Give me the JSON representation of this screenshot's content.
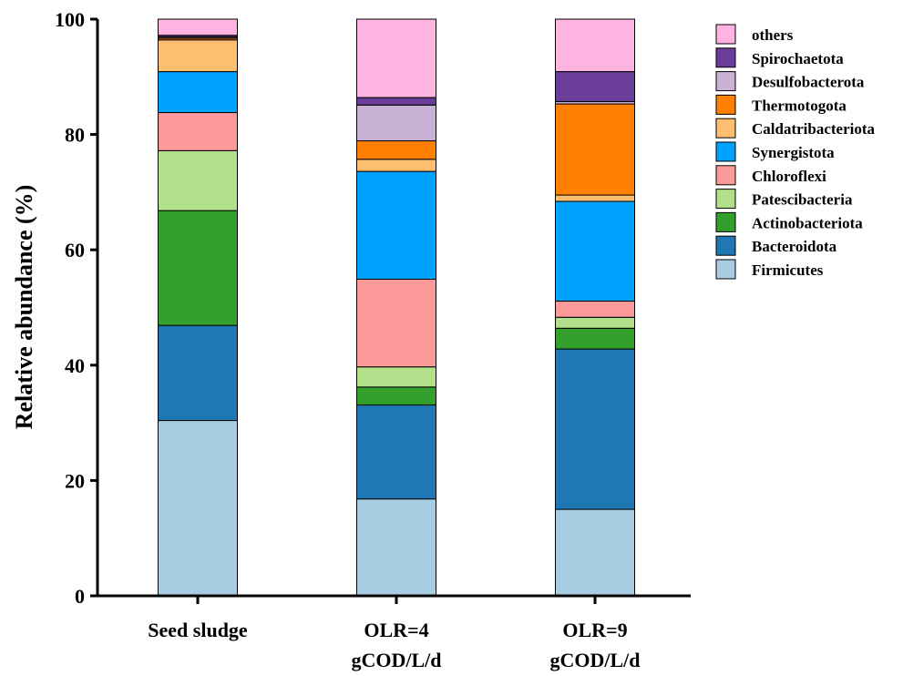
{
  "chart_data": {
    "type": "bar",
    "stacked": true,
    "title": "",
    "xlabel": "",
    "ylabel": "Relative abundance (%)",
    "ylim": [
      0,
      100
    ],
    "yticks": [
      0,
      20,
      40,
      60,
      80,
      100
    ],
    "grid": false,
    "legend_position": "right",
    "categories": [
      [
        "Seed sludge"
      ],
      [
        "OLR=4",
        "gCOD/L/d"
      ],
      [
        "OLR=9",
        "gCOD/L/d"
      ]
    ],
    "series": [
      {
        "name": "Firmicutes",
        "color": "#a6cde2",
        "values": [
          30.4,
          16.8,
          15.0
        ]
      },
      {
        "name": "Bacteroidota",
        "color": "#1f78b4",
        "values": [
          16.5,
          16.3,
          27.8
        ]
      },
      {
        "name": "Actinobacteriota",
        "color": "#33a02c",
        "values": [
          19.9,
          3.1,
          3.6
        ]
      },
      {
        "name": "Patescibacteria",
        "color": "#b2df8a",
        "values": [
          10.4,
          3.5,
          1.9
        ]
      },
      {
        "name": "Chloroflexi",
        "color": "#fb9a99",
        "values": [
          6.6,
          15.2,
          2.8
        ]
      },
      {
        "name": "Synergistota",
        "color": "#00a2ff",
        "values": [
          7.1,
          18.7,
          17.3
        ]
      },
      {
        "name": "Caldatribacteriota",
        "color": "#fdbf6f",
        "values": [
          5.5,
          2.1,
          1.1
        ]
      },
      {
        "name": "Thermotogota",
        "color": "#ff7f00",
        "values": [
          0.3,
          3.2,
          15.8
        ]
      },
      {
        "name": "Desulfobacterota",
        "color": "#cab2d6",
        "values": [
          0.2,
          6.2,
          0.4
        ]
      },
      {
        "name": "Spirochaetota",
        "color": "#6a3d9a",
        "values": [
          0.3,
          1.3,
          5.2
        ]
      },
      {
        "name": "others",
        "color": "#ffb3e0",
        "values": [
          2.8,
          13.6,
          9.1
        ]
      }
    ]
  }
}
